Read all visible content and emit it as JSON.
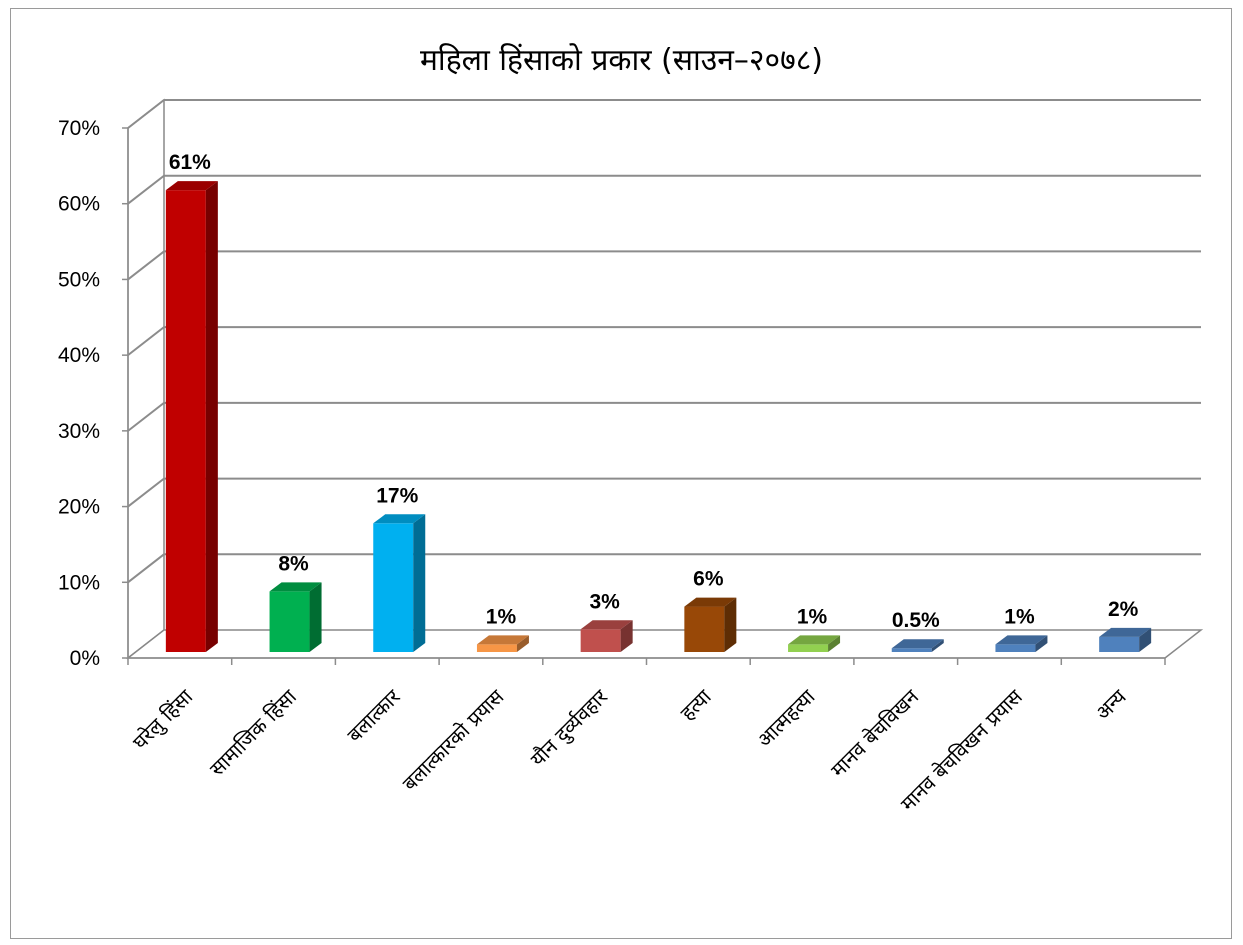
{
  "chart_data": {
    "type": "bar",
    "title": "महिला हिंसाको प्रकार (साउन–२०७८)",
    "categories": [
      "घरेलु हिंसा",
      "सामाजिक हिंसा",
      "बलात्कार",
      "बलात्कारको प्रयास",
      "यौन दुर्व्यवहार",
      "हत्या",
      "आत्महत्या",
      "मानव बेचविखन",
      "मानव बेचविखन प्रयास",
      "अन्य"
    ],
    "values": [
      61,
      8,
      17,
      1,
      3,
      6,
      1,
      0.5,
      1,
      2
    ],
    "data_labels": [
      "61%",
      "8%",
      "17%",
      "1%",
      "3%",
      "6%",
      "1%",
      "0.5%",
      "1%",
      "2%"
    ],
    "colors": [
      "#c00000",
      "#00b050",
      "#00b0f0",
      "#f79646",
      "#c0504d",
      "#984807",
      "#92d050",
      "#4f81bd",
      "#4f81bd",
      "#4f81bd"
    ],
    "yticks": [
      "0%",
      "10%",
      "20%",
      "30%",
      "40%",
      "50%",
      "60%",
      "70%"
    ],
    "ylim": [
      0,
      70
    ],
    "xlabel": "",
    "ylabel": "",
    "grid": true,
    "legend": "none",
    "style": "3d-column"
  }
}
